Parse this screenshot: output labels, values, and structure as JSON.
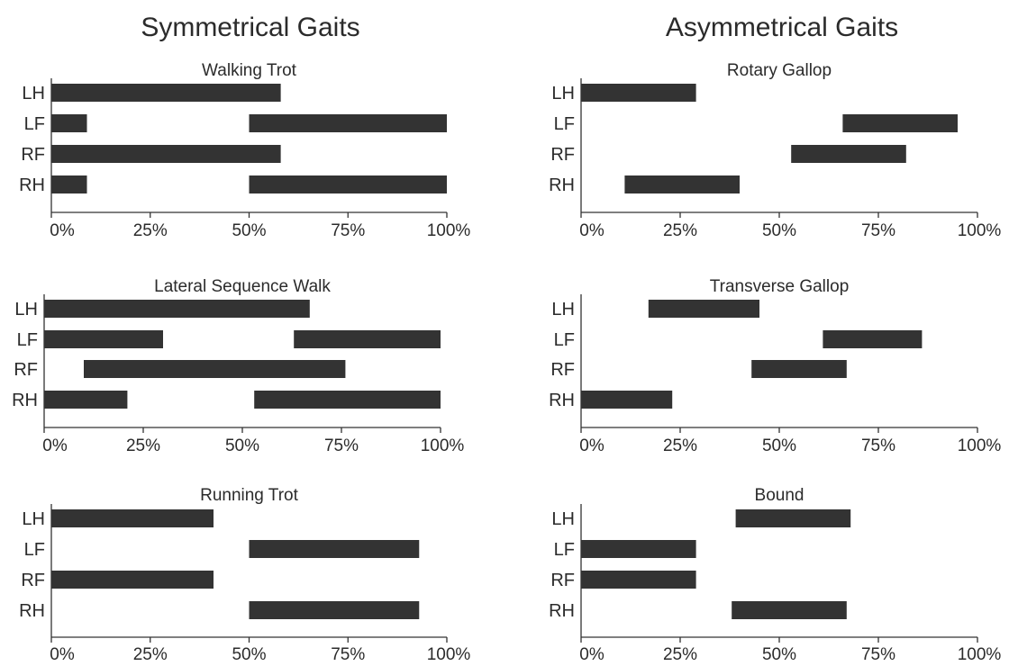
{
  "columns": [
    {
      "title": "Symmetrical Gaits"
    },
    {
      "title": "Asymmetrical Gaits"
    }
  ],
  "colors": {
    "bar": "#333333",
    "axis": "#333333",
    "text": "#2b2b2b"
  },
  "chart_data": [
    {
      "type": "bar",
      "title": "Walking Trot",
      "limbs": [
        "LH",
        "LF",
        "RF",
        "RH"
      ],
      "x_ticks": [
        "0%",
        "25%",
        "50%",
        "75%",
        "100%"
      ],
      "xlim": [
        0,
        100
      ],
      "bars": [
        {
          "limb": "LH",
          "segments": [
            [
              0,
              58
            ]
          ]
        },
        {
          "limb": "LF",
          "segments": [
            [
              0,
              9
            ],
            [
              50,
              100
            ]
          ]
        },
        {
          "limb": "RF",
          "segments": [
            [
              0,
              58
            ]
          ]
        },
        {
          "limb": "RH",
          "segments": [
            [
              0,
              9
            ],
            [
              50,
              100
            ]
          ]
        }
      ]
    },
    {
      "type": "bar",
      "title": "Rotary Gallop",
      "limbs": [
        "LH",
        "LF",
        "RF",
        "RH"
      ],
      "x_ticks": [
        "0%",
        "25%",
        "50%",
        "75%",
        "100%"
      ],
      "xlim": [
        0,
        100
      ],
      "bars": [
        {
          "limb": "LH",
          "segments": [
            [
              0,
              29
            ]
          ]
        },
        {
          "limb": "LF",
          "segments": [
            [
              66,
              95
            ]
          ]
        },
        {
          "limb": "RF",
          "segments": [
            [
              53,
              82
            ]
          ]
        },
        {
          "limb": "RH",
          "segments": [
            [
              11,
              40
            ]
          ]
        }
      ]
    },
    {
      "type": "bar",
      "title": "Lateral Sequence Walk",
      "limbs": [
        "LH",
        "LF",
        "RF",
        "RH"
      ],
      "x_ticks": [
        "0%",
        "25%",
        "50%",
        "75%",
        "100%"
      ],
      "xlim": [
        0,
        100
      ],
      "bars": [
        {
          "limb": "LH",
          "segments": [
            [
              0,
              67
            ]
          ]
        },
        {
          "limb": "LF",
          "segments": [
            [
              0,
              30
            ],
            [
              63,
              100
            ]
          ]
        },
        {
          "limb": "RF",
          "segments": [
            [
              10,
              76
            ]
          ]
        },
        {
          "limb": "RH",
          "segments": [
            [
              0,
              21
            ],
            [
              53,
              100
            ]
          ]
        }
      ]
    },
    {
      "type": "bar",
      "title": "Transverse Gallop",
      "limbs": [
        "LH",
        "LF",
        "RF",
        "RH"
      ],
      "x_ticks": [
        "0%",
        "25%",
        "50%",
        "75%",
        "100%"
      ],
      "xlim": [
        0,
        100
      ],
      "bars": [
        {
          "limb": "LH",
          "segments": [
            [
              17,
              45
            ]
          ]
        },
        {
          "limb": "LF",
          "segments": [
            [
              61,
              86
            ]
          ]
        },
        {
          "limb": "RF",
          "segments": [
            [
              43,
              67
            ]
          ]
        },
        {
          "limb": "RH",
          "segments": [
            [
              0,
              23
            ]
          ]
        }
      ]
    },
    {
      "type": "bar",
      "title": "Running Trot",
      "limbs": [
        "LH",
        "LF",
        "RF",
        "RH"
      ],
      "x_ticks": [
        "0%",
        "25%",
        "50%",
        "75%",
        "100%"
      ],
      "xlim": [
        0,
        100
      ],
      "bars": [
        {
          "limb": "LH",
          "segments": [
            [
              0,
              41
            ]
          ]
        },
        {
          "limb": "LF",
          "segments": [
            [
              50,
              93
            ]
          ]
        },
        {
          "limb": "RF",
          "segments": [
            [
              0,
              41
            ]
          ]
        },
        {
          "limb": "RH",
          "segments": [
            [
              50,
              93
            ]
          ]
        }
      ]
    },
    {
      "type": "bar",
      "title": "Bound",
      "limbs": [
        "LH",
        "LF",
        "RF",
        "RH"
      ],
      "x_ticks": [
        "0%",
        "25%",
        "50%",
        "75%",
        "100%"
      ],
      "xlim": [
        0,
        100
      ],
      "bars": [
        {
          "limb": "LH",
          "segments": [
            [
              39,
              68
            ]
          ]
        },
        {
          "limb": "LF",
          "segments": [
            [
              0,
              29
            ]
          ]
        },
        {
          "limb": "RF",
          "segments": [
            [
              0,
              29
            ]
          ]
        },
        {
          "limb": "RH",
          "segments": [
            [
              38,
              67
            ]
          ]
        }
      ]
    }
  ]
}
